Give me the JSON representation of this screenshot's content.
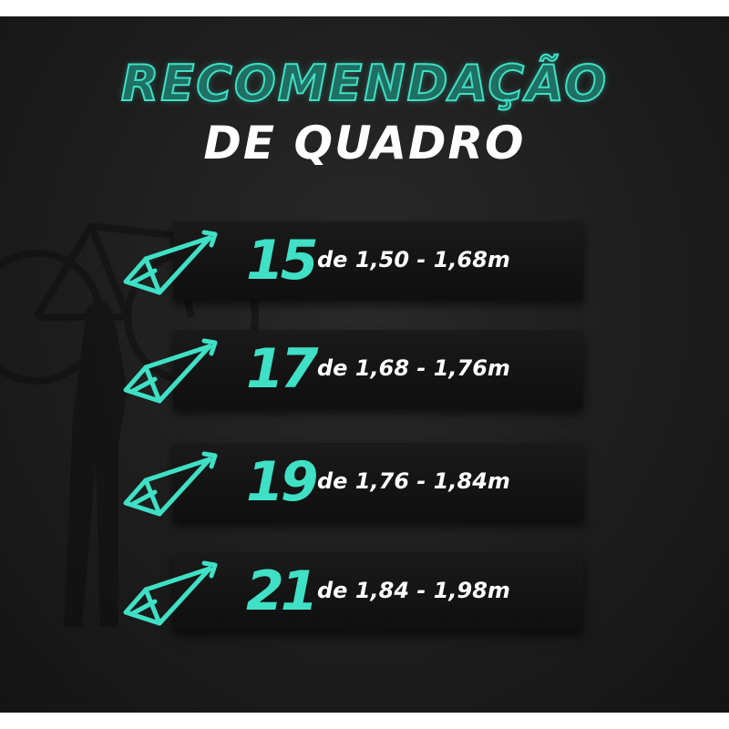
{
  "title": {
    "line1": "RECOMENDAÇÃO",
    "line2": "DE QUADRO"
  },
  "accent_color": "#3fe0c5",
  "rows": [
    {
      "size": "15",
      "range": "de 1,50 - 1,68m",
      "icon": "bike-frame-icon"
    },
    {
      "size": "17",
      "range": "de 1,68 - 1,76m",
      "icon": "bike-frame-icon"
    },
    {
      "size": "19",
      "range": "de 1,76 - 1,84m",
      "icon": "bike-frame-icon"
    },
    {
      "size": "21",
      "range": "de 1,84 - 1,98m",
      "icon": "bike-frame-icon"
    }
  ]
}
